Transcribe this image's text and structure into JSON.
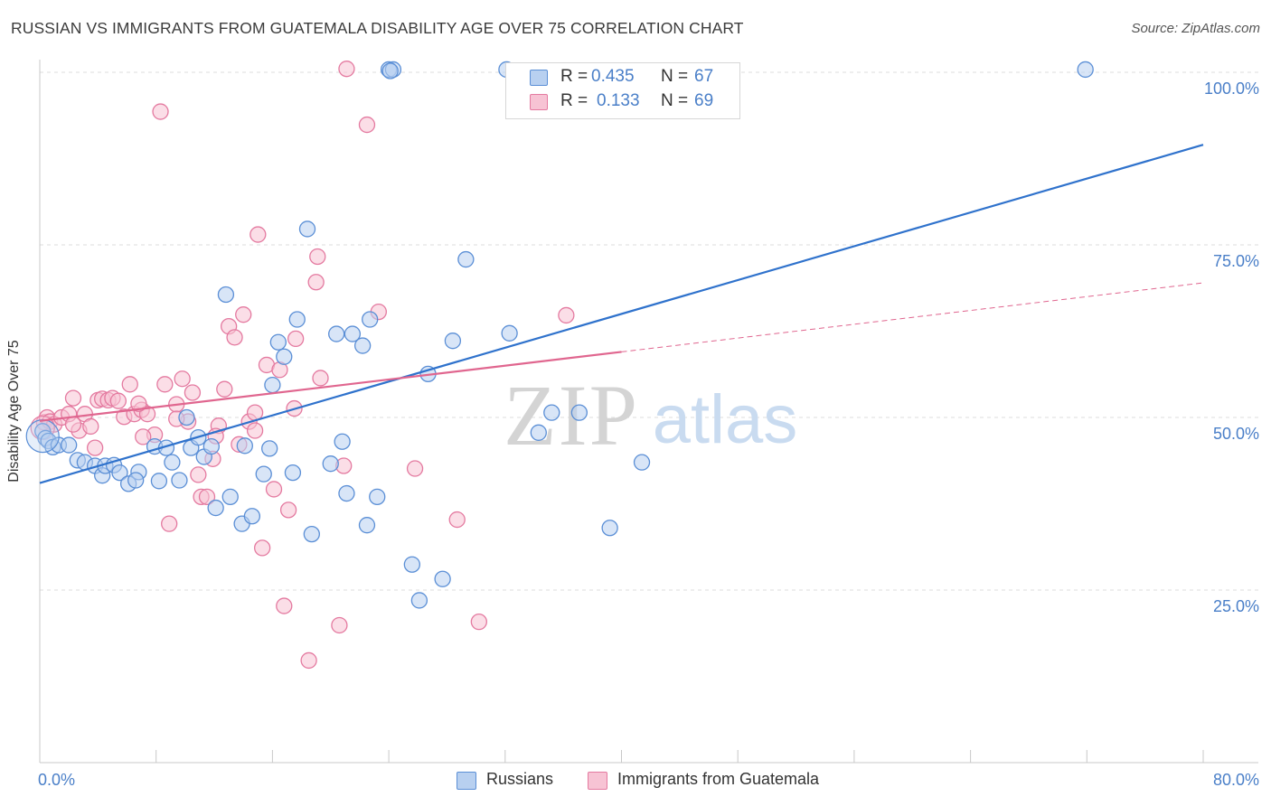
{
  "title": "RUSSIAN VS IMMIGRANTS FROM GUATEMALA DISABILITY AGE OVER 75 CORRELATION CHART",
  "source": "Source: ZipAtlas.com",
  "colors": {
    "blue": "#5b8fd6",
    "blue_fill": "#b8d0f0",
    "blue_line": "#2f72cc",
    "pink": "#e47aa0",
    "pink_fill": "#f7c3d4",
    "pink_line": "#e0668f",
    "axis_text": "#4a7fc8",
    "grid": "#dddddd"
  },
  "legend": {
    "rows": [
      {
        "r_label": "R =",
        "r_value": "0.435",
        "n_label": "N =",
        "n_value": "67"
      },
      {
        "r_label": "R =",
        "r_value": "0.133",
        "n_label": "N =",
        "n_value": "69"
      }
    ]
  },
  "bottom_legend": {
    "series1": "Russians",
    "series2": "Immigrants from Guatemala"
  },
  "watermark": {
    "zip": "ZIP",
    "atlas": "atlas"
  },
  "chart_data": {
    "type": "scatter",
    "title": "RUSSIAN VS IMMIGRANTS FROM GUATEMALA DISABILITY AGE OVER 75 CORRELATION CHART",
    "xlabel": "",
    "ylabel": "Disability Age Over 75",
    "xlim": [
      0,
      80
    ],
    "ylim": [
      0,
      100
    ],
    "x_tick_labels": [
      "0.0%",
      "80.0%"
    ],
    "y_ticks": [
      25,
      50,
      75,
      100
    ],
    "y_tick_labels": [
      "25.0%",
      "50.0%",
      "75.0%",
      "100.0%"
    ],
    "grid": true,
    "legend_position": "top-center",
    "series": [
      {
        "name": "Russians",
        "color": "#5b8fd6",
        "r": 0.435,
        "n": 67,
        "trend": {
          "x": [
            0,
            80
          ],
          "y": [
            40.5,
            89.5
          ],
          "solid_until": 80
        },
        "points": [
          [
            0.2,
            48.0
          ],
          [
            0.4,
            47.0
          ],
          [
            0.6,
            46.6
          ],
          [
            0.9,
            45.7
          ],
          [
            1.3,
            46.0
          ],
          [
            2.0,
            46.0
          ],
          [
            2.6,
            43.8
          ],
          [
            3.1,
            43.5
          ],
          [
            3.8,
            43.0
          ],
          [
            4.3,
            41.6
          ],
          [
            4.5,
            43.0
          ],
          [
            5.1,
            43.1
          ],
          [
            5.5,
            42.0
          ],
          [
            6.1,
            40.4
          ],
          [
            6.8,
            42.1
          ],
          [
            6.6,
            40.9
          ],
          [
            7.9,
            45.8
          ],
          [
            8.2,
            40.8
          ],
          [
            8.7,
            45.6
          ],
          [
            9.1,
            43.5
          ],
          [
            9.6,
            40.9
          ],
          [
            10.1,
            50.0
          ],
          [
            10.4,
            45.6
          ],
          [
            10.9,
            47.1
          ],
          [
            11.3,
            44.3
          ],
          [
            11.8,
            45.8
          ],
          [
            12.1,
            36.9
          ],
          [
            12.8,
            67.8
          ],
          [
            13.1,
            38.5
          ],
          [
            13.9,
            34.6
          ],
          [
            14.1,
            45.9
          ],
          [
            14.6,
            35.7
          ],
          [
            15.4,
            41.8
          ],
          [
            15.8,
            45.5
          ],
          [
            16.0,
            54.7
          ],
          [
            16.4,
            60.9
          ],
          [
            16.8,
            58.8
          ],
          [
            17.4,
            42.0
          ],
          [
            17.7,
            64.2
          ],
          [
            18.4,
            77.3
          ],
          [
            18.7,
            33.1
          ],
          [
            20.0,
            43.3
          ],
          [
            20.4,
            62.1
          ],
          [
            20.8,
            46.5
          ],
          [
            21.1,
            39.0
          ],
          [
            21.5,
            62.1
          ],
          [
            22.2,
            60.4
          ],
          [
            22.5,
            34.4
          ],
          [
            22.7,
            64.2
          ],
          [
            23.2,
            38.5
          ],
          [
            24.0,
            100.4
          ],
          [
            24.3,
            100.4
          ],
          [
            25.6,
            28.7
          ],
          [
            24.1,
            100.2
          ],
          [
            26.7,
            56.3
          ],
          [
            27.7,
            26.6
          ],
          [
            28.4,
            61.1
          ],
          [
            29.3,
            72.9
          ],
          [
            32.1,
            100.4
          ],
          [
            32.3,
            62.2
          ],
          [
            34.3,
            47.8
          ],
          [
            35.2,
            50.7
          ],
          [
            37.1,
            50.7
          ],
          [
            39.2,
            34.0
          ],
          [
            41.4,
            43.5
          ],
          [
            71.9,
            100.4
          ],
          [
            26.1,
            23.5
          ]
        ]
      },
      {
        "name": "Immigrants from Guatemala",
        "color": "#e47aa0",
        "r": 0.133,
        "n": 69,
        "trend": {
          "x": [
            0,
            80
          ],
          "y": [
            49.5,
            69.5
          ],
          "solid_until": 40
        },
        "points": [
          [
            0.3,
            49.3
          ],
          [
            0.5,
            50.0
          ],
          [
            0.7,
            49.4
          ],
          [
            1.0,
            49.0
          ],
          [
            1.5,
            50.0
          ],
          [
            2.0,
            50.5
          ],
          [
            2.3,
            52.8
          ],
          [
            2.7,
            48.1
          ],
          [
            3.1,
            50.5
          ],
          [
            3.5,
            48.7
          ],
          [
            4.0,
            52.5
          ],
          [
            4.3,
            52.7
          ],
          [
            4.7,
            52.5
          ],
          [
            5.0,
            52.8
          ],
          [
            5.4,
            52.4
          ],
          [
            5.8,
            50.1
          ],
          [
            6.2,
            54.8
          ],
          [
            6.5,
            50.5
          ],
          [
            7.0,
            51.1
          ],
          [
            7.4,
            50.5
          ],
          [
            7.9,
            47.5
          ],
          [
            8.3,
            94.3
          ],
          [
            8.6,
            54.8
          ],
          [
            8.9,
            34.6
          ],
          [
            9.4,
            51.9
          ],
          [
            9.8,
            55.6
          ],
          [
            10.2,
            49.4
          ],
          [
            10.5,
            53.6
          ],
          [
            10.9,
            41.7
          ],
          [
            11.1,
            38.5
          ],
          [
            11.5,
            38.5
          ],
          [
            11.9,
            44.0
          ],
          [
            12.3,
            48.8
          ],
          [
            12.7,
            54.1
          ],
          [
            13.0,
            63.2
          ],
          [
            13.4,
            61.6
          ],
          [
            13.7,
            46.1
          ],
          [
            14.0,
            64.9
          ],
          [
            14.4,
            49.4
          ],
          [
            14.8,
            48.1
          ],
          [
            15.0,
            76.5
          ],
          [
            15.3,
            31.1
          ],
          [
            15.6,
            57.6
          ],
          [
            16.1,
            39.6
          ],
          [
            16.5,
            56.9
          ],
          [
            16.8,
            22.7
          ],
          [
            17.1,
            36.6
          ],
          [
            17.6,
            61.4
          ],
          [
            18.5,
            14.8
          ],
          [
            19.0,
            69.6
          ],
          [
            19.1,
            73.3
          ],
          [
            19.3,
            55.7
          ],
          [
            20.6,
            19.9
          ],
          [
            20.9,
            43.0
          ],
          [
            21.1,
            100.5
          ],
          [
            22.5,
            92.4
          ],
          [
            23.3,
            65.3
          ],
          [
            25.8,
            42.6
          ],
          [
            28.7,
            35.2
          ],
          [
            30.2,
            20.4
          ],
          [
            36.2,
            64.8
          ],
          [
            2.3,
            49.0
          ],
          [
            3.8,
            45.6
          ],
          [
            6.8,
            52.0
          ],
          [
            9.4,
            49.8
          ],
          [
            12.1,
            47.3
          ],
          [
            14.8,
            50.7
          ],
          [
            17.5,
            51.3
          ],
          [
            7.1,
            47.2
          ]
        ]
      }
    ]
  }
}
